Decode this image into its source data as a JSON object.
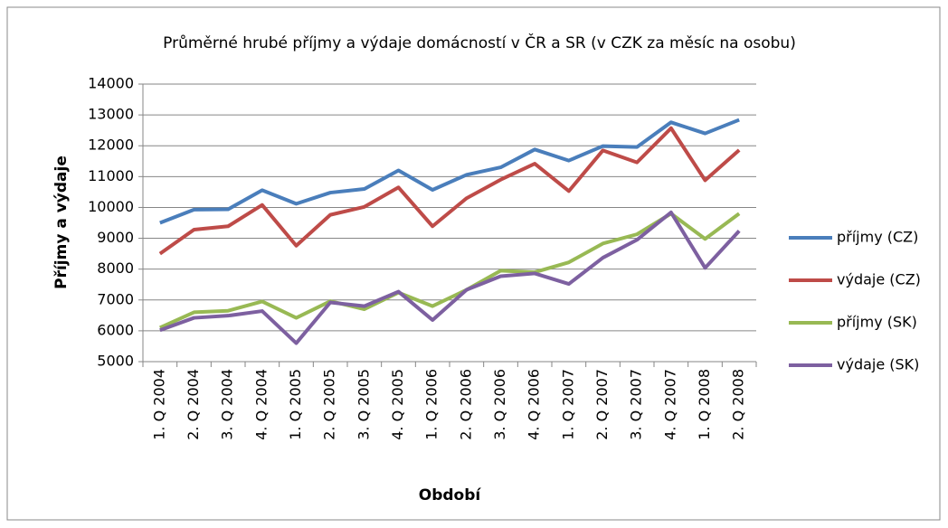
{
  "chart_data": {
    "type": "line",
    "title": "Průměrné hrubé příjmy a výdaje domácností v ČR a SR (v CZK za měsíc na osobu)",
    "x_label": "Období",
    "y_label": "Příjmy a výdaje",
    "categories": [
      "1. Q 2004",
      "2. Q 2004",
      "3. Q 2004",
      "4. Q 2004",
      "1. Q 2005",
      "2. Q 2005",
      "3. Q 2005",
      "4. Q 2005",
      "1. Q 2006",
      "2. Q 2006",
      "3. Q 2006",
      "4. Q 2006",
      "1. Q 2007",
      "2. Q 2007",
      "3. Q 2007",
      "4. Q 2007",
      "1. Q 2008",
      "2. Q 2008"
    ],
    "series": [
      {
        "name": "příjmy (CZ)",
        "color": "#4a7ebb",
        "values": [
          9500,
          9930,
          9940,
          10560,
          10120,
          10480,
          10600,
          11200,
          10570,
          11060,
          11300,
          11880,
          11520,
          11990,
          11960,
          12760,
          12400,
          12840
        ]
      },
      {
        "name": "výdaje (CZ)",
        "color": "#be4b48",
        "values": [
          8500,
          9280,
          9390,
          10080,
          8760,
          9760,
          10020,
          10650,
          9390,
          10300,
          10900,
          11420,
          10530,
          11850,
          11460,
          12570,
          10880,
          11860
        ]
      },
      {
        "name": "příjmy (SK)",
        "color": "#98b954",
        "values": [
          6100,
          6600,
          6650,
          6950,
          6420,
          6960,
          6700,
          7240,
          6800,
          7330,
          7950,
          7900,
          8220,
          8830,
          9130,
          9800,
          8980,
          9800
        ]
      },
      {
        "name": "výdaje (SK)",
        "color": "#7d60a0",
        "values": [
          6020,
          6420,
          6490,
          6640,
          5600,
          6920,
          6800,
          7270,
          6350,
          7330,
          7770,
          7860,
          7520,
          8370,
          8950,
          9840,
          8040,
          9240
        ]
      }
    ],
    "ylim": [
      5000,
      14000
    ],
    "yticks": [
      5000,
      6000,
      7000,
      8000,
      9000,
      10000,
      11000,
      12000,
      13000,
      14000
    ],
    "grid": true,
    "legend": "right"
  }
}
